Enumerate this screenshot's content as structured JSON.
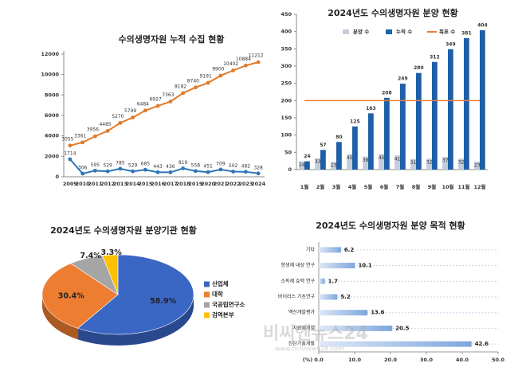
{
  "chart_data": [
    {
      "type": "line",
      "title": "수의생명자원 누적 수집 현황",
      "categories": [
        "2009",
        "2010",
        "2011",
        "2012",
        "2013",
        "2014",
        "2015",
        "2016",
        "2017",
        "2018",
        "2019",
        "2020",
        "2021",
        "2022",
        "2023",
        "2024"
      ],
      "series": [
        {
          "color": "#e07b2a",
          "values": [
            3055,
            3361,
            3956,
            4485,
            5270,
            5799,
            6484,
            6927,
            7363,
            8182,
            8740,
            9191,
            9900,
            10402,
            10884,
            11212
          ]
        },
        {
          "color": "#2e75b6",
          "values": [
            1714,
            306,
            595,
            529,
            785,
            529,
            685,
            443,
            436,
            819,
            558,
            451,
            709,
            502,
            482,
            328
          ]
        }
      ],
      "ylim": [
        0,
        12000
      ],
      "yticks": [
        0,
        2000,
        4000,
        6000,
        8000,
        10000,
        12000
      ]
    },
    {
      "type": "bar",
      "title": "2024년도 수의생명자원 분양 현황",
      "categories": [
        "1월",
        "2월",
        "3월",
        "4월",
        "5월",
        "6월",
        "7월",
        "8월",
        "9월",
        "10월",
        "11월",
        "12월"
      ],
      "series": [
        {
          "name": "분양 수",
          "color": "#c3ccd9",
          "values": [
            24,
            33,
            23,
            45,
            38,
            45,
            41,
            31,
            32,
            37,
            32,
            23
          ]
        },
        {
          "name": "누적 수",
          "color": "#1f5fa8",
          "values": [
            24,
            57,
            80,
            125,
            163,
            208,
            249,
            280,
            312,
            349,
            381,
            404
          ]
        },
        {
          "name": "목표 수",
          "color": "#ed7d31",
          "type": "line",
          "values": [
            200,
            200,
            200,
            200,
            200,
            200,
            200,
            200,
            200,
            200,
            200,
            200
          ]
        }
      ],
      "ylim": [
        0,
        450
      ],
      "yticks": [
        0,
        50,
        100,
        150,
        200,
        250,
        300,
        350,
        400,
        450
      ],
      "legend": "top"
    },
    {
      "type": "pie",
      "title": "2024년도 수의생명자원 분양기관 현황",
      "categories": [
        "산업체",
        "대학",
        "국공립연구소",
        "검역본부"
      ],
      "values": [
        58.9,
        30.4,
        7.4,
        3.3
      ],
      "value_labels": [
        "58.9%",
        "30.4%",
        "7.4%",
        "3.3%"
      ],
      "colors": [
        "#3a66c4",
        "#ed7d31",
        "#a5a5a5",
        "#ffc000"
      ],
      "legend": "right"
    },
    {
      "type": "barh",
      "title": "2024년도 수의생명자원 분양 목적 현황",
      "categories": [
        "기타",
        "항생제 내성 연구",
        "소독제 효력 연구",
        "바이러스 기초연구",
        "백신개발평가",
        "치료제개발",
        "진단기술개발"
      ],
      "values": [
        6.2,
        10.1,
        1.7,
        5.2,
        13.6,
        20.5,
        42.6
      ],
      "color": "#8fb4e3",
      "x_label": "(%)",
      "xlim": [
        0,
        50
      ],
      "xticks": [
        {
          "value": 0,
          "label": "0.0"
        },
        {
          "value": 10,
          "label": "10.0"
        },
        {
          "value": 20,
          "label": "20.0"
        },
        {
          "value": 30,
          "label": "30.0"
        },
        {
          "value": 40,
          "label": "40.0"
        },
        {
          "value": 50,
          "label": "50.0"
        }
      ]
    }
  ],
  "watermark": {
    "text": "비씨엔뉴스24",
    "url": "www.bcnnews24.com"
  }
}
